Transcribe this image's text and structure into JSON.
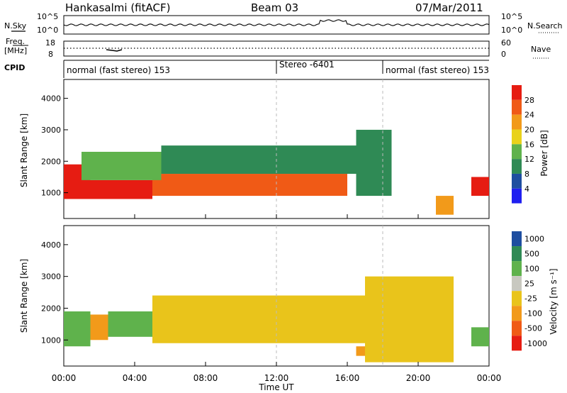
{
  "header": {
    "station": "Hankasalmi (fitACF)",
    "beam": "Beam 03",
    "date": "07/Mar/2011"
  },
  "strips": {
    "nsky": {
      "label": "N.Sky",
      "left_ticks": [
        "10^5",
        "10^0"
      ],
      "right_ticks": [
        "10^5",
        "10^0"
      ],
      "right_label": "N.Search"
    },
    "freq": {
      "label_line1": "Freq.",
      "label_line2": "[MHz]",
      "left_ticks": [
        "18",
        "8"
      ],
      "right_ticks": [
        "60",
        "0"
      ],
      "right_label": "Nave"
    },
    "cpid": {
      "label": "CPID",
      "segments": [
        {
          "text": "normal (fast stereo) 153",
          "start_hour": 0
        },
        {
          "text": "Stereo -6401",
          "start_hour": 12
        },
        {
          "text": "normal (fast stereo) 153",
          "start_hour": 18
        }
      ]
    }
  },
  "colors": {
    "power": [
      "#1f1ff0",
      "#1e4ea0",
      "#2f8a55",
      "#5fb24c",
      "#e9d21b",
      "#f29a1a",
      "#f05a16",
      "#e61c12"
    ],
    "velocity": [
      "#e61c12",
      "#f05a16",
      "#f29a1a",
      "#e9c41b",
      "#c8c8c0",
      "#5fb24c",
      "#2f8a55",
      "#1e4ea0"
    ]
  },
  "chart_data": [
    {
      "type": "heatmap",
      "panel": "power",
      "xlabel": "Time UT",
      "ylabel": "Slant Range [km]",
      "x_ticks": [
        "00:00",
        "04:00",
        "08:00",
        "12:00",
        "16:00",
        "20:00",
        "00:00"
      ],
      "xlim_hours": [
        0,
        24
      ],
      "ylim": [
        180,
        4600
      ],
      "y_ticks": [
        1000,
        2000,
        3000,
        4000
      ],
      "colorbar_label": "Power [dB]",
      "colorbar_ticks": [
        4,
        8,
        12,
        16,
        20,
        24,
        28
      ],
      "regions": [
        {
          "t0": 0.0,
          "t1": 1.5,
          "r0": 800,
          "r1": 1900,
          "dB": 30
        },
        {
          "t0": 1.5,
          "t1": 5.0,
          "r0": 800,
          "r1": 1400,
          "dB": 28
        },
        {
          "t0": 5.0,
          "t1": 16.0,
          "r0": 900,
          "r1": 1600,
          "dB": 26
        },
        {
          "t0": 1.0,
          "t1": 5.5,
          "r0": 1400,
          "r1": 2300,
          "dB": 14
        },
        {
          "t0": 5.5,
          "t1": 16.5,
          "r0": 1600,
          "r1": 2500,
          "dB": 10
        },
        {
          "t0": 16.5,
          "t1": 18.5,
          "r0": 900,
          "r1": 3000,
          "dB": 8
        },
        {
          "t0": 21.0,
          "t1": 22.0,
          "r0": 300,
          "r1": 900,
          "dB": 22
        },
        {
          "t0": 23.0,
          "t1": 24.0,
          "r0": 900,
          "r1": 1500,
          "dB": 30
        }
      ]
    },
    {
      "type": "heatmap",
      "panel": "velocity",
      "xlabel": "Time UT",
      "ylabel": "Slant Range [km]",
      "x_ticks": [
        "00:00",
        "04:00",
        "08:00",
        "12:00",
        "16:00",
        "20:00",
        "00:00"
      ],
      "xlim_hours": [
        0,
        24
      ],
      "ylim": [
        180,
        4600
      ],
      "y_ticks": [
        1000,
        2000,
        3000,
        4000
      ],
      "colorbar_label": "Velocity [m s⁻¹]",
      "colorbar_ticks": [
        "-1000",
        "-500",
        "-100",
        "-25",
        "25",
        "100",
        "500",
        "1000"
      ],
      "regions": [
        {
          "t0": 0.0,
          "t1": 1.5,
          "r0": 800,
          "r1": 1900,
          "v": 150
        },
        {
          "t0": 1.5,
          "t1": 2.5,
          "r0": 1000,
          "r1": 1800,
          "v": -200
        },
        {
          "t0": 2.5,
          "t1": 5.0,
          "r0": 1100,
          "r1": 1900,
          "v": 150
        },
        {
          "t0": 5.0,
          "t1": 17.0,
          "r0": 900,
          "r1": 2400,
          "v": 0
        },
        {
          "t0": 16.5,
          "t1": 17.0,
          "r0": 500,
          "r1": 800,
          "v": -200
        },
        {
          "t0": 17.0,
          "t1": 22.0,
          "r0": 300,
          "r1": 3000,
          "v": 0
        },
        {
          "t0": 23.0,
          "t1": 24.0,
          "r0": 800,
          "r1": 1400,
          "v": 300
        }
      ]
    }
  ]
}
